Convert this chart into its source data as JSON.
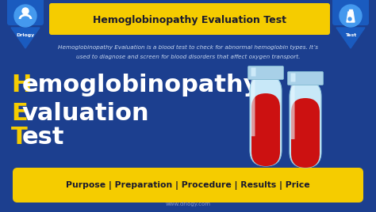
{
  "bg_color": "#1c3f8f",
  "title_text": "Hemoglobinopathy Evaluation Test",
  "title_bg": "#f5cc00",
  "title_color": "#1a1a2e",
  "description_line1": "Hemoglobinopathy Evaluation is a blood test to check for abnormal hemoglobin types. It’s",
  "description_line2": "used to diagnose and screen for blood disorders that affect oxygen transport.",
  "desc_color": "#c8d8f0",
  "line1_letter": "H",
  "line1_rest": "emoglobinopathy",
  "line2_letter": "E",
  "line2_rest": "valuation",
  "line3_letter": "T",
  "line3_rest": "est",
  "letter_color": "#f5cc00",
  "word_color": "#ffffff",
  "bottom_bar_bg": "#f5cc00",
  "bottom_text": "Purpose | Preparation | Procedure | Results | Price",
  "bottom_text_color": "#1a1a2e",
  "website": "www.drlogy.com",
  "website_color": "#8899cc",
  "logo_left_text": "Drlogy",
  "logo_right_text": "Test",
  "logo_bg": "#1a5bbf",
  "logo_icon_color": "#4499ee",
  "blood_color": "#cc1111",
  "tube_glass_color": "#c8e8f8",
  "tube_cap_color": "#a8d0e8",
  "tube_shine_color": "#e8f8ff"
}
